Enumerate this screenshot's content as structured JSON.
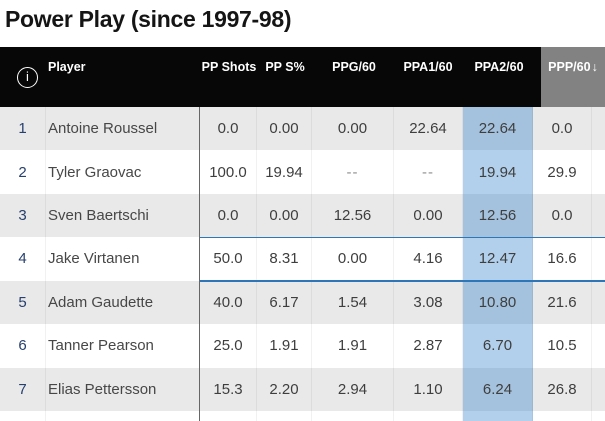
{
  "title": "Power Play (since 1997-98)",
  "icons": {
    "info": "i",
    "sort_desc": "↓"
  },
  "colors": {
    "header_bg": "#070707",
    "sorted_header_bg": "#828282",
    "row_alt": "#e9e9e9",
    "highlight_blue": "rgba(47,128,200,0.37)",
    "highlight_border": "#2d76b7",
    "rank_color": "#27406e"
  },
  "table": {
    "columns": [
      {
        "key": "player",
        "label": "Player"
      },
      {
        "key": "pp_shots",
        "label": "PP Shots"
      },
      {
        "key": "pp_s_pct",
        "label": "PP S%"
      },
      {
        "key": "ppg_60",
        "label": "PPG/60"
      },
      {
        "key": "ppa1_60",
        "label": "PPA1/60"
      },
      {
        "key": "ppa2_60",
        "label": "PPA2/60"
      },
      {
        "key": "ppp_60",
        "label": "PPP/60",
        "sorted": "desc"
      }
    ],
    "sort_arrow": "↓",
    "highlighted_column": "ppa2_60",
    "highlighted_row_rank": "4",
    "rows": [
      {
        "rank": "1",
        "player": "Antoine Roussel",
        "pp_shots": "0.0",
        "pp_s_pct": "0.00",
        "ppg_60": "0.00",
        "ppa1_60": "22.64",
        "ppa2_60": "22.64",
        "ppp_60": "0.0"
      },
      {
        "rank": "2",
        "player": "Tyler Graovac",
        "pp_shots": "100.0",
        "pp_s_pct": "19.94",
        "ppg_60": "--",
        "ppa1_60": "--",
        "ppa2_60": "19.94",
        "ppp_60": "29.9"
      },
      {
        "rank": "3",
        "player": "Sven Baertschi",
        "pp_shots": "0.0",
        "pp_s_pct": "0.00",
        "ppg_60": "12.56",
        "ppa1_60": "0.00",
        "ppa2_60": "12.56",
        "ppp_60": "0.0"
      },
      {
        "rank": "4",
        "player": "Jake Virtanen",
        "pp_shots": "50.0",
        "pp_s_pct": "8.31",
        "ppg_60": "0.00",
        "ppa1_60": "4.16",
        "ppa2_60": "12.47",
        "ppp_60": "16.6"
      },
      {
        "rank": "5",
        "player": "Adam Gaudette",
        "pp_shots": "40.0",
        "pp_s_pct": "6.17",
        "ppg_60": "1.54",
        "ppa1_60": "3.08",
        "ppa2_60": "10.80",
        "ppp_60": "21.6"
      },
      {
        "rank": "6",
        "player": "Tanner Pearson",
        "pp_shots": "25.0",
        "pp_s_pct": "1.91",
        "ppg_60": "1.91",
        "ppa1_60": "2.87",
        "ppa2_60": "6.70",
        "ppp_60": "10.5"
      },
      {
        "rank": "7",
        "player": "Elias Pettersson",
        "pp_shots": "15.3",
        "pp_s_pct": "2.20",
        "ppg_60": "2.94",
        "ppa1_60": "1.10",
        "ppa2_60": "6.24",
        "ppp_60": "26.8"
      }
    ]
  }
}
